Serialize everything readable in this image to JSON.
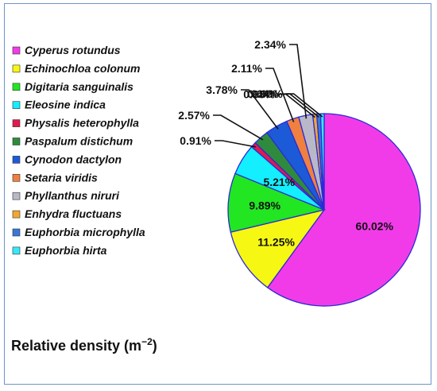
{
  "chart_data": {
    "type": "pie",
    "title": "",
    "caption": "Relative density (m⁻²)",
    "legend_position": "left",
    "slices": [
      {
        "label": "Cyperus rotundus",
        "value": 60.02,
        "value_label": "60.02%",
        "color": "#f23be8"
      },
      {
        "label": "Echinochloa colonum",
        "value": 11.25,
        "value_label": "11.25%",
        "color": "#f7f714"
      },
      {
        "label": "Digitaria sanguinalis",
        "value": 9.89,
        "value_label": "9.89%",
        "color": "#22e622"
      },
      {
        "label": "Eleosine indica",
        "value": 5.21,
        "value_label": "5.21%",
        "color": "#13efff"
      },
      {
        "label": "Physalis heterophylla",
        "value": 0.91,
        "value_label": "0.91%",
        "color": "#e01a4b"
      },
      {
        "label": "Paspalum distichum",
        "value": 2.57,
        "value_label": "2.57%",
        "color": "#2e8b3e"
      },
      {
        "label": "Cynodon dactylon",
        "value": 3.78,
        "value_label": "3.78%",
        "color": "#1d5ad8"
      },
      {
        "label": "Setaria viridis",
        "value": 2.11,
        "value_label": "2.11%",
        "color": "#f08040"
      },
      {
        "label": "Phyllanthus niruri",
        "value": 2.34,
        "value_label": "2.34%",
        "color": "#b8b8c8"
      },
      {
        "label": "Enhydra fluctuans",
        "value": 0.68,
        "value_label": "0.68%",
        "color": "#f0a830"
      },
      {
        "label": "Euphorbia microphylla",
        "value": 0.64,
        "value_label": "0.64%",
        "color": "#3a78d8"
      },
      {
        "label": "Euphorbia hirta",
        "value": 0.6,
        "value_label": "0.60%",
        "color": "#38e8f8"
      }
    ]
  }
}
